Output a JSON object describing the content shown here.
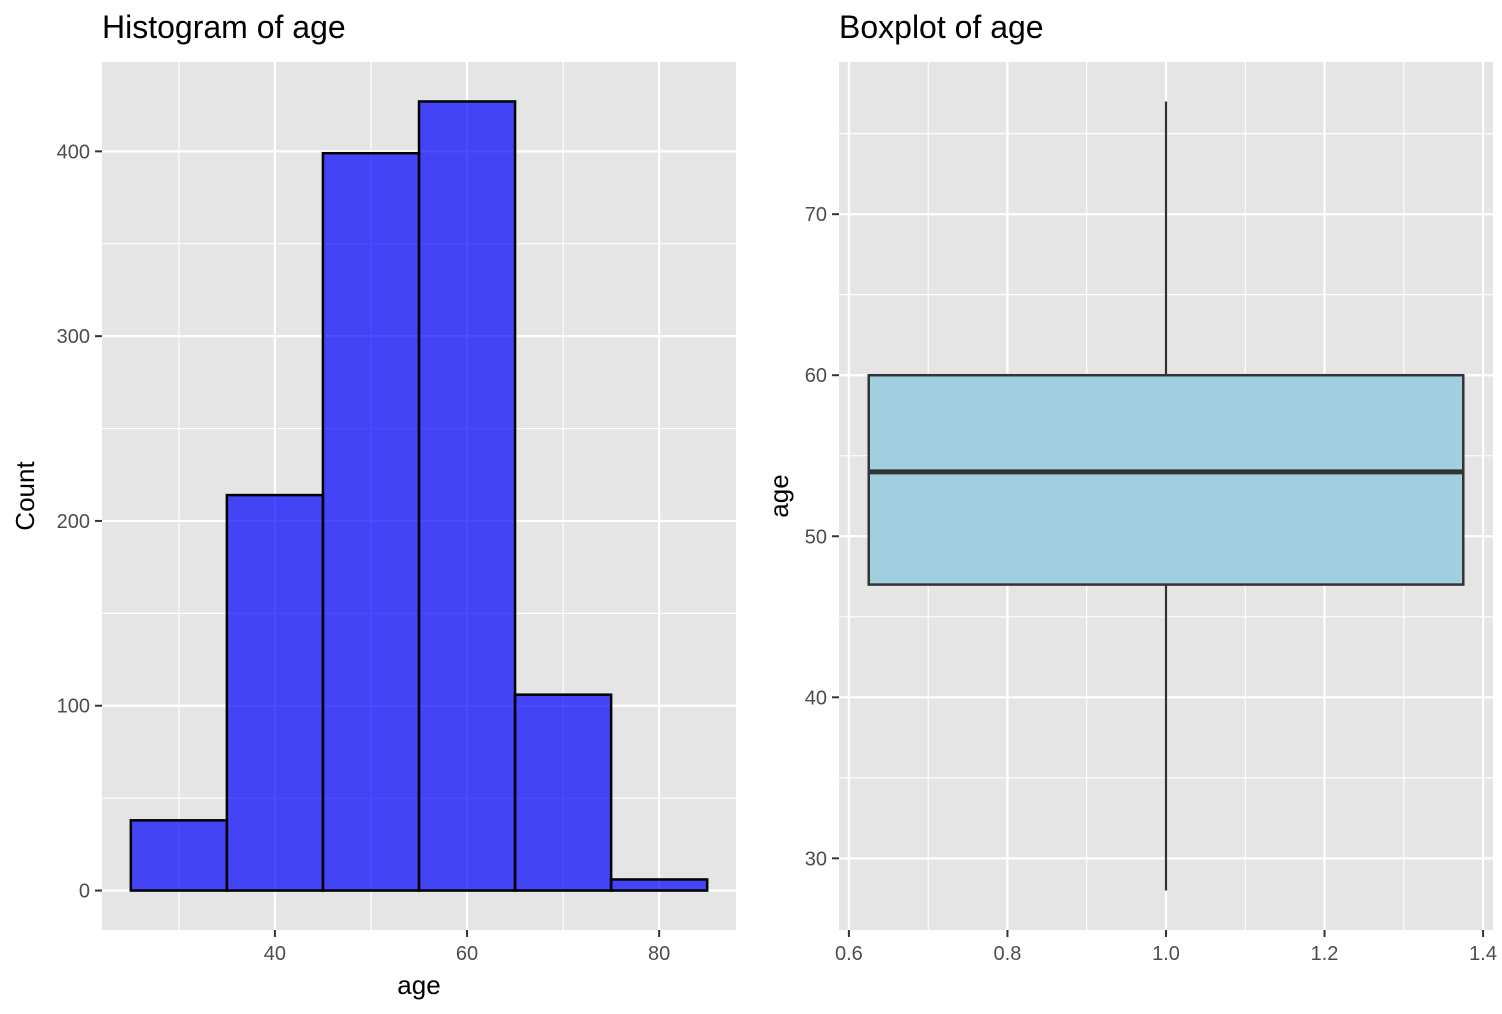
{
  "chart_data": [
    {
      "type": "bar",
      "title": "Histogram of age",
      "xlabel": "age",
      "ylabel": "Count",
      "bins": [
        {
          "x0": 25,
          "x1": 35,
          "count": 38
        },
        {
          "x0": 35,
          "x1": 45,
          "count": 214
        },
        {
          "x0": 45,
          "x1": 55,
          "count": 399
        },
        {
          "x0": 55,
          "x1": 65,
          "count": 427
        },
        {
          "x0": 65,
          "x1": 75,
          "count": 106
        },
        {
          "x0": 75,
          "x1": 85,
          "count": 6
        }
      ],
      "xlim": [
        22,
        88
      ],
      "ylim": [
        -21.35,
        448.35
      ],
      "x_ticks": [
        40,
        60,
        80
      ],
      "x_tick_labels": [
        "40",
        "60",
        "80"
      ],
      "y_ticks": [
        0,
        100,
        200,
        300,
        400
      ],
      "y_tick_labels": [
        "0",
        "100",
        "200",
        "300",
        "400"
      ],
      "bar_fill": "#0000ff",
      "bar_fill_opacity": 0.7,
      "bar_stroke": "#000000",
      "grid": true
    },
    {
      "type": "boxplot",
      "title": "Boxplot of age",
      "xlabel": "",
      "ylabel": "age",
      "x_center": 1.0,
      "box_width": 0.75,
      "min": 28,
      "q1": 47,
      "median": 54,
      "q3": 60,
      "max": 77,
      "xlim": [
        0.5875,
        1.4125
      ],
      "ylim": [
        25.55,
        79.45
      ],
      "x_ticks": [
        0.6,
        0.8,
        1.0,
        1.2,
        1.4
      ],
      "x_tick_labels": [
        "0.6",
        "0.8",
        "1.0",
        "1.2",
        "1.4"
      ],
      "y_ticks": [
        30,
        40,
        50,
        60,
        70
      ],
      "y_tick_labels": [
        "30",
        "40",
        "50",
        "60",
        "70"
      ],
      "box_fill": "#a0cfe0",
      "box_stroke": "#333333",
      "grid": true
    }
  ]
}
